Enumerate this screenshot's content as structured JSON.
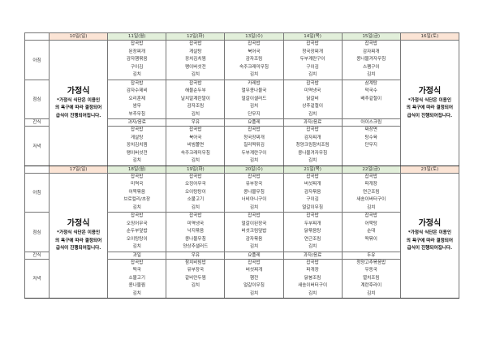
{
  "meal_labels": {
    "breakfast": "아침",
    "lunch": "점심",
    "snack": "간식",
    "dinner": "저녁"
  },
  "home_meal": {
    "title": "가정식",
    "note": [
      "*가정식 식단은 이용인",
      "의 욕구에 따라 결정되어",
      "급식이 진행되어집니다."
    ]
  },
  "colors": {
    "weekday_header": "#e2efda",
    "weekend_header": "#fbe4d5"
  },
  "weeks": [
    {
      "days": [
        {
          "header": "10일(일)",
          "home": true
        },
        {
          "header": "11일(월)",
          "breakfast": [
            "잡곡밥",
            "된장찌개",
            "감자햄볶음",
            "구이김",
            "김치"
          ],
          "lunch": [
            "잡곡밥",
            "감자수제비",
            "오리훈제",
            "쌈무",
            "부추무침"
          ],
          "snack": "과자/음료",
          "dinner": [
            "잡곡밥",
            "게살탕",
            "꽁치김치찜",
            "팽이버섯전",
            "김치"
          ]
        },
        {
          "header": "12일(화)",
          "breakfast": [
            "잡곡밥",
            "게살탕",
            "꽁치김치찜",
            "팽이버섯전",
            "김치"
          ],
          "lunch": [
            "잡곡밥",
            "해물순두부",
            "날치알계란말이",
            "감자조림",
            "김치"
          ],
          "snack": "우유",
          "dinner": [
            "잡곡밥",
            "북어국",
            "비빔쫄면",
            "숙주크래미무침",
            "김치"
          ]
        },
        {
          "header": "13일(수)",
          "breakfast": [
            "잡곡밥",
            "북어국",
            "감자조림",
            "숙주크래미무침",
            "김치"
          ],
          "lunch": [
            "카레밥",
            "열무콩나물국",
            "얼갈이샐러드",
            "김치",
            "단무지"
          ],
          "snack": "요플레",
          "dinner": [
            "잡곡밥",
            "청국장찌개",
            "칠리떡튀김",
            "두부계란구이",
            "김치"
          ]
        },
        {
          "header": "14일(목)",
          "breakfast": [
            "잡곡밥",
            "청국장찌개",
            "두부계란구이",
            "구이김",
            "김치"
          ],
          "lunch": [
            "잡곡밥",
            "미역냉국",
            "닭갈비",
            "상추겉절이",
            "김치"
          ],
          "snack": "과자/음료",
          "dinner": [
            "잡곡밥",
            "감자찌개",
            "청양크림참치조림",
            "콩나물겨자무침",
            "김치"
          ]
        },
        {
          "header": "15일(금)",
          "breakfast": [
            "잡곡밥",
            "감자찌개",
            "콩나물겨자무침",
            "스팸구이",
            "김치"
          ],
          "lunch": [
            "삼계탕",
            "막국수",
            "배추겉절이",
            "",
            ""
          ],
          "snack": "아이스크림",
          "dinner": [
            "짜장면",
            "탕수육",
            "단무지",
            "",
            ""
          ]
        },
        {
          "header": "16일(토)",
          "home": true
        }
      ]
    },
    {
      "days": [
        {
          "header": "17일(일)",
          "home": true
        },
        {
          "header": "18일(월)",
          "breakfast": [
            "잡곡밥",
            "미역국",
            "어묵볶음",
            "브로컬리/초장",
            "김치"
          ],
          "lunch": [
            "잡곡밥",
            "오징어무국",
            "순두부덮밥",
            "오이탕탕이",
            "김치"
          ],
          "snack": "과일",
          "dinner": [
            "잡곡밥",
            "떡국",
            "소불고기",
            "콩나물찜",
            "김치"
          ]
        },
        {
          "header": "19일(화)",
          "breakfast": [
            "잡곡밥",
            "오징어무국",
            "오이탕탕이",
            "소불고기",
            "김치"
          ],
          "lunch": [
            "잡곡밥",
            "미역냉국",
            "낙지볶음",
            "콩나물무침",
            "양상추샐러드"
          ],
          "snack": "우유",
          "dinner": [
            "참치비빔밥",
            "유부장국",
            "갈비만두찜",
            "김치",
            ""
          ]
        },
        {
          "header": "20일(수)",
          "breakfast": [
            "잡곡밥",
            "유부장국",
            "콩나물무침",
            "너비아니구이",
            "김치"
          ],
          "lunch": [
            "잡곡밥",
            "얼갈이된장국",
            "버섯크림덮밥",
            "감자볶음",
            "김치"
          ],
          "snack": "요플레",
          "dinner": [
            "잡곡밥",
            "버섯찌개",
            "햄전",
            "얼갈이무침",
            "김치"
          ]
        },
        {
          "header": "21일(목)",
          "breakfast": [
            "잡곡밥",
            "버섯찌개",
            "감자볶음",
            "구이김",
            "얼갈이무침"
          ],
          "lunch": [
            "잡곡밥",
            "두부찌개",
            "닭볶음탕",
            "연근조림",
            "김치"
          ],
          "snack": "과자/음료",
          "dinner": [
            "잡곡밥",
            "파개장",
            "닭봉조림",
            "새송이버터구이",
            "김치"
          ]
        },
        {
          "header": "22일(금)",
          "breakfast": [
            "잡곡밥",
            "파개장",
            "연근조림",
            "새송이버터구이",
            "김치"
          ],
          "lunch": [
            "잡곡밥",
            "어묵탕",
            "순대",
            "떡볶이",
            ""
          ],
          "snack": "두유",
          "dinner": [
            "청양고추볶음밥",
            "우동국",
            "멸치조림",
            "계란후라이",
            "김치"
          ]
        },
        {
          "header": "23일(토)",
          "home": true
        }
      ]
    }
  ]
}
